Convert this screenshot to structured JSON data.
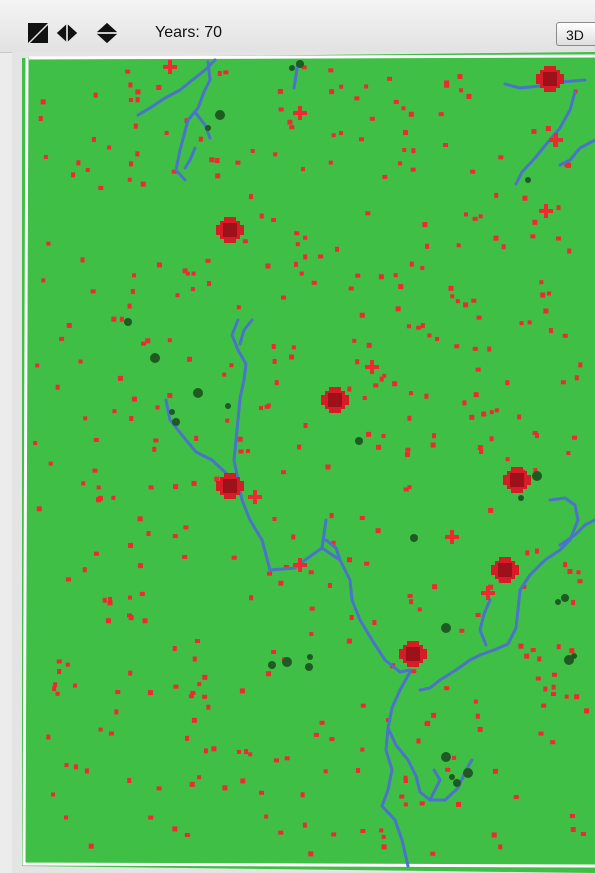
{
  "toolbar": {
    "years_label": "Years: 70",
    "view_3d_label": "3D",
    "icons": [
      "diagonal-resize-icon",
      "horizontal-resize-icon",
      "vertical-resize-icon"
    ]
  },
  "world": {
    "colors": {
      "land": "#3fbf46",
      "border": "#ffffff",
      "river": "#4a73c9",
      "settlement": "#f0282f",
      "city": "#d61c27",
      "city_core": "#9d121a",
      "forest": "#1f5a22"
    }
  }
}
